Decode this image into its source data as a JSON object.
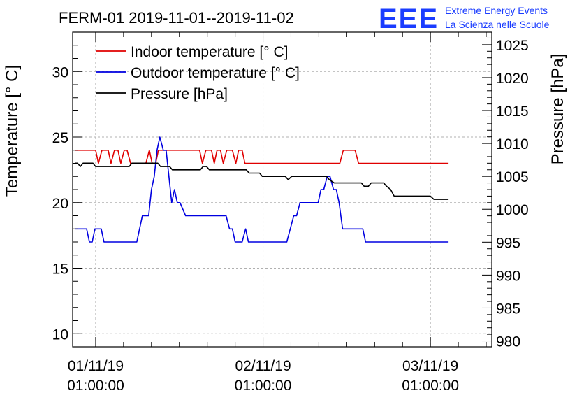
{
  "chart_data": {
    "type": "line",
    "title": "FERM-01 2019-11-01--2019-11-02",
    "logo": {
      "mark": "EEE",
      "line1": "Extreme Energy Events",
      "line2": "La Scienza nelle Scuole",
      "color": "#1a3cff"
    },
    "ylabel": "Temperature [° C]",
    "y2label": "Pressure [hPa]",
    "ylim": [
      9,
      33
    ],
    "y2lim": [
      979.1,
      1026.9
    ],
    "xlim": [
      -3.3,
      56.8
    ],
    "x_unit": "hours since 01/11/19 01:00:00",
    "y_ticks": [
      10,
      15,
      20,
      25,
      30
    ],
    "y2_ticks": [
      980,
      985,
      990,
      995,
      1000,
      1005,
      1010,
      1015,
      1020,
      1025
    ],
    "x_ticks": [
      {
        "x": 0,
        "date": "01/11/19",
        "time": "01:00:00"
      },
      {
        "x": 24,
        "date": "02/11/19",
        "time": "01:00:00"
      },
      {
        "x": 48,
        "date": "03/11/19",
        "time": "01:00:00"
      }
    ],
    "grid": true,
    "legend_position": "top-left",
    "series": [
      {
        "name": "Indoor temperature [° C]",
        "color": "#e00000",
        "axis": "left",
        "points": [
          [
            -3,
            24
          ],
          [
            0,
            24
          ],
          [
            0.4,
            23
          ],
          [
            0.9,
            24
          ],
          [
            1.8,
            24
          ],
          [
            2.2,
            23
          ],
          [
            2.7,
            24
          ],
          [
            3.2,
            24
          ],
          [
            3.6,
            23
          ],
          [
            4.1,
            24
          ],
          [
            4.5,
            24
          ],
          [
            5.0,
            23
          ],
          [
            7.2,
            23
          ],
          [
            7.7,
            24
          ],
          [
            8.1,
            23
          ],
          [
            8.6,
            23
          ],
          [
            9.0,
            24
          ],
          [
            14.9,
            24
          ],
          [
            15.3,
            23
          ],
          [
            15.8,
            24
          ],
          [
            16.6,
            24
          ],
          [
            17.0,
            23
          ],
          [
            17.4,
            24
          ],
          [
            17.9,
            24
          ],
          [
            18.3,
            23
          ],
          [
            18.8,
            24
          ],
          [
            19.6,
            24
          ],
          [
            20.1,
            23
          ],
          [
            20.5,
            24
          ],
          [
            21.0,
            24
          ],
          [
            21.4,
            23
          ],
          [
            35.0,
            23
          ],
          [
            35.5,
            24
          ],
          [
            37.2,
            24
          ],
          [
            37.7,
            23
          ],
          [
            50.6,
            23
          ]
        ]
      },
      {
        "name": "Outdoor temperature [° C]",
        "color": "#0000e0",
        "axis": "left",
        "points": [
          [
            -3,
            18
          ],
          [
            -1.3,
            18
          ],
          [
            -0.9,
            17
          ],
          [
            -0.5,
            17
          ],
          [
            -0.1,
            18
          ],
          [
            0.8,
            18
          ],
          [
            1.2,
            17
          ],
          [
            5.9,
            17
          ],
          [
            6.3,
            18
          ],
          [
            6.7,
            19
          ],
          [
            7.6,
            19
          ],
          [
            8.0,
            21
          ],
          [
            8.4,
            22
          ],
          [
            8.8,
            24
          ],
          [
            9.2,
            25
          ],
          [
            9.7,
            24
          ],
          [
            10.1,
            24
          ],
          [
            10.5,
            22
          ],
          [
            10.9,
            20
          ],
          [
            11.3,
            21
          ],
          [
            11.7,
            20
          ],
          [
            12.1,
            20
          ],
          [
            12.9,
            19
          ],
          [
            18.7,
            19
          ],
          [
            19.2,
            18
          ],
          [
            19.6,
            18
          ],
          [
            20.0,
            17
          ],
          [
            21.0,
            17
          ],
          [
            21.5,
            18
          ],
          [
            21.9,
            17
          ],
          [
            27.4,
            17
          ],
          [
            27.9,
            18
          ],
          [
            28.4,
            19
          ],
          [
            28.8,
            19
          ],
          [
            29.3,
            20
          ],
          [
            31.9,
            20
          ],
          [
            32.3,
            21
          ],
          [
            32.7,
            21
          ],
          [
            33.2,
            22
          ],
          [
            33.6,
            22
          ],
          [
            34.1,
            21
          ],
          [
            34.5,
            21
          ],
          [
            34.9,
            20
          ],
          [
            35.4,
            18
          ],
          [
            35.8,
            18
          ],
          [
            38.3,
            18
          ],
          [
            38.7,
            17
          ],
          [
            50.6,
            17
          ]
        ]
      },
      {
        "name": "Pressure [hPa]",
        "color": "#000000",
        "axis": "right",
        "points": [
          [
            -3,
            1007
          ],
          [
            -2.6,
            1007
          ],
          [
            -2.2,
            1006.5
          ],
          [
            -1.8,
            1007
          ],
          [
            -0.4,
            1007
          ],
          [
            0,
            1006.5
          ],
          [
            4.8,
            1006.5
          ],
          [
            5.2,
            1007
          ],
          [
            8.9,
            1007
          ],
          [
            9.3,
            1006.5
          ],
          [
            10.6,
            1006.5
          ],
          [
            11.0,
            1006
          ],
          [
            15.0,
            1006
          ],
          [
            15.4,
            1006.5
          ],
          [
            15.9,
            1006.5
          ],
          [
            16.3,
            1006
          ],
          [
            21.6,
            1006
          ],
          [
            22.0,
            1005.5
          ],
          [
            23.5,
            1005.5
          ],
          [
            23.9,
            1005
          ],
          [
            27.2,
            1005
          ],
          [
            27.6,
            1004.5
          ],
          [
            28.1,
            1005
          ],
          [
            33.1,
            1005
          ],
          [
            33.5,
            1004.5
          ],
          [
            34.2,
            1004
          ],
          [
            38.1,
            1004
          ],
          [
            38.5,
            1003.5
          ],
          [
            39.1,
            1003.5
          ],
          [
            39.5,
            1004
          ],
          [
            41.3,
            1004
          ],
          [
            41.7,
            1003.5
          ],
          [
            42.3,
            1003
          ],
          [
            42.8,
            1002
          ],
          [
            48.0,
            1002
          ],
          [
            48.5,
            1001.5
          ],
          [
            50.6,
            1001.5
          ]
        ]
      }
    ]
  }
}
